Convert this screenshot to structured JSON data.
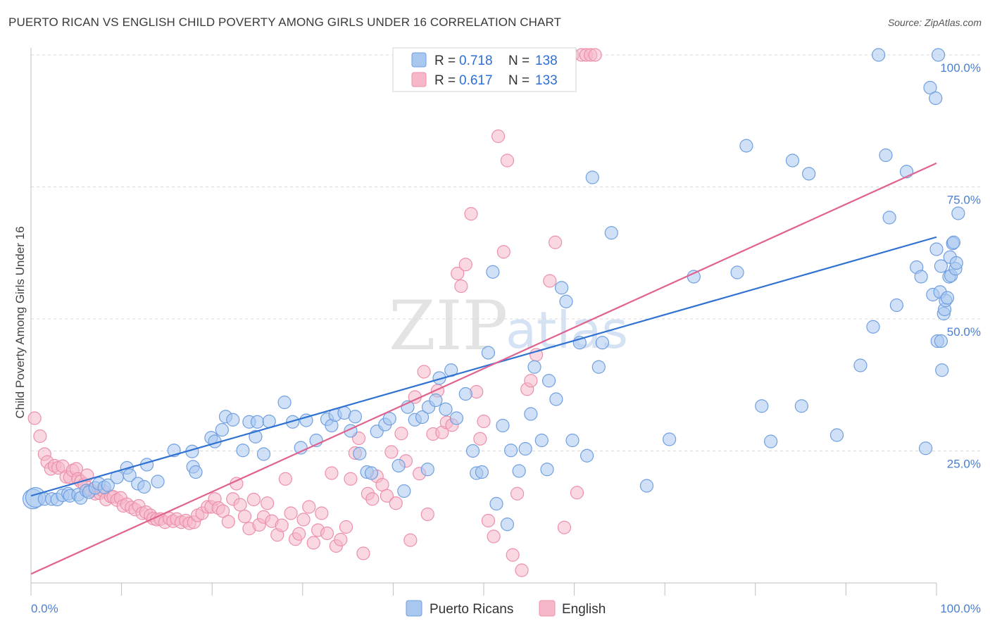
{
  "header": {
    "title": "PUERTO RICAN VS ENGLISH CHILD POVERTY AMONG GIRLS UNDER 16 CORRELATION CHART",
    "source": "Source: ZipAtlas.com"
  },
  "watermark": {
    "zip": "ZIP",
    "atlas": "atlas"
  },
  "colors": {
    "blue_fill": "#a9c8f0",
    "blue_stroke": "#6f9fe0",
    "blue_line": "#2f72d2",
    "pink_fill": "#f6b8c9",
    "pink_stroke": "#ec8fab",
    "pink_line": "#e0628e",
    "grid": "#d9d9d9",
    "tick_label": "#4a7fd0"
  },
  "legend": {
    "rows": [
      {
        "r_label": "R = ",
        "r_value": "0.718",
        "n_label": "N = ",
        "n_value": "138"
      },
      {
        "r_label": "R = ",
        "r_value": "0.617",
        "n_label": "N = ",
        "n_value": "133"
      }
    ]
  },
  "chart_data": {
    "type": "scatter",
    "title": "PUERTO RICAN VS ENGLISH CHILD POVERTY AMONG GIRLS UNDER 16 CORRELATION CHART",
    "xlabel": "",
    "ylabel": "Child Poverty Among Girls Under 16",
    "xlim": [
      0,
      100
    ],
    "ylim": [
      0,
      100
    ],
    "x_tick_labels": [
      "0.0%",
      "100.0%"
    ],
    "y_ticks": [
      25,
      50,
      75,
      100
    ],
    "y_tick_labels": [
      "25.0%",
      "50.0%",
      "75.0%",
      "100.0%"
    ],
    "grid": "horizontal dashed",
    "legend_position": "top-center",
    "series": [
      {
        "name": "Puerto Ricans",
        "r": 0.718,
        "n": 138,
        "trend": {
          "x": [
            0,
            100
          ],
          "y": [
            16.5,
            65.5
          ]
        },
        "points": [
          [
            0.2,
            15.9
          ],
          [
            0.5,
            16.2
          ],
          [
            1.5,
            15.9
          ],
          [
            2.3,
            15.9
          ],
          [
            2.9,
            15.8
          ],
          [
            3.5,
            16.6
          ],
          [
            4.1,
            16.9
          ],
          [
            4.3,
            16.5
          ],
          [
            5.2,
            16.7
          ],
          [
            5.5,
            16.1
          ],
          [
            6.1,
            17.5
          ],
          [
            6.4,
            17.2
          ],
          [
            7.1,
            18.0
          ],
          [
            7.5,
            18.8
          ],
          [
            8.1,
            18.1
          ],
          [
            8.5,
            18.5
          ],
          [
            9.5,
            20.0
          ],
          [
            10.6,
            21.8
          ],
          [
            10.9,
            20.4
          ],
          [
            11.8,
            18.8
          ],
          [
            12.5,
            18.2
          ],
          [
            12.8,
            22.4
          ],
          [
            14.0,
            19.2
          ],
          [
            15.8,
            25.1
          ],
          [
            17.8,
            24.9
          ],
          [
            17.9,
            22.0
          ],
          [
            18.2,
            21.0
          ],
          [
            19.9,
            27.5
          ],
          [
            20.3,
            26.8
          ],
          [
            21.1,
            29.0
          ],
          [
            21.5,
            31.5
          ],
          [
            22.3,
            30.9
          ],
          [
            23.4,
            25.1
          ],
          [
            24.1,
            30.5
          ],
          [
            24.8,
            27.7
          ],
          [
            25.0,
            30.5
          ],
          [
            25.7,
            24.4
          ],
          [
            26.3,
            30.6
          ],
          [
            28.0,
            34.2
          ],
          [
            28.9,
            30.5
          ],
          [
            29.8,
            25.6
          ],
          [
            30.4,
            30.8
          ],
          [
            31.5,
            27.0
          ],
          [
            32.7,
            31.0
          ],
          [
            33.2,
            29.8
          ],
          [
            33.6,
            31.8
          ],
          [
            34.6,
            32.2
          ],
          [
            35.3,
            28.8
          ],
          [
            35.8,
            31.5
          ],
          [
            36.3,
            24.5
          ],
          [
            37.1,
            21.0
          ],
          [
            37.6,
            20.8
          ],
          [
            38.2,
            28.7
          ],
          [
            39.1,
            30.0
          ],
          [
            39.6,
            31.1
          ],
          [
            40.6,
            22.2
          ],
          [
            41.2,
            17.4
          ],
          [
            41.6,
            33.3
          ],
          [
            42.4,
            30.9
          ],
          [
            43.2,
            31.4
          ],
          [
            43.8,
            21.5
          ],
          [
            43.9,
            33.3
          ],
          [
            44.7,
            34.6
          ],
          [
            45.1,
            38.8
          ],
          [
            45.8,
            32.9
          ],
          [
            46.4,
            40.3
          ],
          [
            47.0,
            31.2
          ],
          [
            48.0,
            35.8
          ],
          [
            48.8,
            25.0
          ],
          [
            49.2,
            20.8
          ],
          [
            49.8,
            21.0
          ],
          [
            50.5,
            43.6
          ],
          [
            51.0,
            58.9
          ],
          [
            51.4,
            15.0
          ],
          [
            52.1,
            29.8
          ],
          [
            52.6,
            11.1
          ],
          [
            53.0,
            25.1
          ],
          [
            53.9,
            21.2
          ],
          [
            54.6,
            25.4
          ],
          [
            55.2,
            32.0
          ],
          [
            55.6,
            40.9
          ],
          [
            56.4,
            27.0
          ],
          [
            57.0,
            21.5
          ],
          [
            57.2,
            38.3
          ],
          [
            58.0,
            34.8
          ],
          [
            58.6,
            55.9
          ],
          [
            59.1,
            53.3
          ],
          [
            59.8,
            27.0
          ],
          [
            60.6,
            45.5
          ],
          [
            61.4,
            24.1
          ],
          [
            62.0,
            76.8
          ],
          [
            62.7,
            40.9
          ],
          [
            63.1,
            45.5
          ],
          [
            64.1,
            66.3
          ],
          [
            68.0,
            18.4
          ],
          [
            70.5,
            27.2
          ],
          [
            73.2,
            58.0
          ],
          [
            78.0,
            58.8
          ],
          [
            79.0,
            82.8
          ],
          [
            80.7,
            33.5
          ],
          [
            81.7,
            26.8
          ],
          [
            84.1,
            80.0
          ],
          [
            85.1,
            33.5
          ],
          [
            85.9,
            77.5
          ],
          [
            89.0,
            28.0
          ],
          [
            91.6,
            41.2
          ],
          [
            93.0,
            48.5
          ],
          [
            93.6,
            100.0
          ],
          [
            94.4,
            81.0
          ],
          [
            94.8,
            69.2
          ],
          [
            95.6,
            52.6
          ],
          [
            96.7,
            77.9
          ],
          [
            97.8,
            59.8
          ],
          [
            98.3,
            58.0
          ],
          [
            98.8,
            25.5
          ],
          [
            99.3,
            93.8
          ],
          [
            99.6,
            54.6
          ],
          [
            99.9,
            91.8
          ],
          [
            100.0,
            63.2
          ],
          [
            100.1,
            45.8
          ],
          [
            100.2,
            100.0
          ],
          [
            100.4,
            55.1
          ],
          [
            100.5,
            45.8
          ],
          [
            100.5,
            60.0
          ],
          [
            100.6,
            40.3
          ],
          [
            100.8,
            51.0
          ],
          [
            100.9,
            51.8
          ],
          [
            101.0,
            53.5
          ],
          [
            101.2,
            54.0
          ],
          [
            101.4,
            58.0
          ],
          [
            101.5,
            61.7
          ],
          [
            101.6,
            58.2
          ],
          [
            101.8,
            64.3
          ],
          [
            101.9,
            64.5
          ],
          [
            102.1,
            59.5
          ],
          [
            102.2,
            60.6
          ],
          [
            102.4,
            70.0
          ]
        ]
      },
      {
        "name": "English",
        "r": 0.617,
        "n": 133,
        "trend": {
          "x": [
            0,
            100
          ],
          "y": [
            1.7,
            79.5
          ]
        },
        "points": [
          [
            0.4,
            31.2
          ],
          [
            1.0,
            27.8
          ],
          [
            1.5,
            24.4
          ],
          [
            1.8,
            22.9
          ],
          [
            2.2,
            21.6
          ],
          [
            2.6,
            22.2
          ],
          [
            3.0,
            21.8
          ],
          [
            3.5,
            22.1
          ],
          [
            3.9,
            20.1
          ],
          [
            4.3,
            20.0
          ],
          [
            4.6,
            21.3
          ],
          [
            5.0,
            21.6
          ],
          [
            5.2,
            19.7
          ],
          [
            5.5,
            19.2
          ],
          [
            5.9,
            18.7
          ],
          [
            6.2,
            20.4
          ],
          [
            6.6,
            17.6
          ],
          [
            7.1,
            16.9
          ],
          [
            7.6,
            17.0
          ],
          [
            8.0,
            17.4
          ],
          [
            8.3,
            15.8
          ],
          [
            8.8,
            16.4
          ],
          [
            9.1,
            16.3
          ],
          [
            9.5,
            15.7
          ],
          [
            9.9,
            16.1
          ],
          [
            10.2,
            14.6
          ],
          [
            10.6,
            14.9
          ],
          [
            11.1,
            14.3
          ],
          [
            11.5,
            13.9
          ],
          [
            11.9,
            14.6
          ],
          [
            12.3,
            13.2
          ],
          [
            12.7,
            13.4
          ],
          [
            13.2,
            12.8
          ],
          [
            13.5,
            12.2
          ],
          [
            13.9,
            12.0
          ],
          [
            14.3,
            12.1
          ],
          [
            14.8,
            11.5
          ],
          [
            15.3,
            12.2
          ],
          [
            15.7,
            11.7
          ],
          [
            16.1,
            12.1
          ],
          [
            16.6,
            11.5
          ],
          [
            17.1,
            11.8
          ],
          [
            17.5,
            11.3
          ],
          [
            18.0,
            11.5
          ],
          [
            18.4,
            12.8
          ],
          [
            18.9,
            13.2
          ],
          [
            19.5,
            14.4
          ],
          [
            19.9,
            14.4
          ],
          [
            20.3,
            15.9
          ],
          [
            20.7,
            14.2
          ],
          [
            21.2,
            13.6
          ],
          [
            21.8,
            11.6
          ],
          [
            22.3,
            15.9
          ],
          [
            22.7,
            18.8
          ],
          [
            23.1,
            14.8
          ],
          [
            23.6,
            12.6
          ],
          [
            24.1,
            10.3
          ],
          [
            24.6,
            15.8
          ],
          [
            25.2,
            11.0
          ],
          [
            25.7,
            12.5
          ],
          [
            26.1,
            15.1
          ],
          [
            26.6,
            11.7
          ],
          [
            27.2,
            9.1
          ],
          [
            27.7,
            10.9
          ],
          [
            28.1,
            19.7
          ],
          [
            28.7,
            13.2
          ],
          [
            29.2,
            8.3
          ],
          [
            29.6,
            9.3
          ],
          [
            30.1,
            12.0
          ],
          [
            30.7,
            14.4
          ],
          [
            31.2,
            7.6
          ],
          [
            31.7,
            10.0
          ],
          [
            32.1,
            13.2
          ],
          [
            32.7,
            9.4
          ],
          [
            33.2,
            20.8
          ],
          [
            33.7,
            7.0
          ],
          [
            34.2,
            8.2
          ],
          [
            34.8,
            10.6
          ],
          [
            35.3,
            19.7
          ],
          [
            35.8,
            24.6
          ],
          [
            36.2,
            27.4
          ],
          [
            36.7,
            5.6
          ],
          [
            37.2,
            16.9
          ],
          [
            37.7,
            15.9
          ],
          [
            38.2,
            20.2
          ],
          [
            38.8,
            18.6
          ],
          [
            39.3,
            16.5
          ],
          [
            39.8,
            24.8
          ],
          [
            40.3,
            15.1
          ],
          [
            40.9,
            28.3
          ],
          [
            41.4,
            23.1
          ],
          [
            41.9,
            8.1
          ],
          [
            42.4,
            35.2
          ],
          [
            42.9,
            20.7
          ],
          [
            43.4,
            40.0
          ],
          [
            43.8,
            13.0
          ],
          [
            44.4,
            28.2
          ],
          [
            44.9,
            36.4
          ],
          [
            45.4,
            28.5
          ],
          [
            45.9,
            30.4
          ],
          [
            46.5,
            29.9
          ],
          [
            47.1,
            58.6
          ],
          [
            47.5,
            56.2
          ],
          [
            48.0,
            60.3
          ],
          [
            48.6,
            69.9
          ],
          [
            49.2,
            36.2
          ],
          [
            49.6,
            27.3
          ],
          [
            50.0,
            30.6
          ],
          [
            50.5,
            11.8
          ],
          [
            51.1,
            8.8
          ],
          [
            51.6,
            84.6
          ],
          [
            52.2,
            62.7
          ],
          [
            52.6,
            80.0
          ],
          [
            53.2,
            5.3
          ],
          [
            53.7,
            16.9
          ],
          [
            54.2,
            2.4
          ],
          [
            54.8,
            36.7
          ],
          [
            55.2,
            38.3
          ],
          [
            55.8,
            43.2
          ],
          [
            56.3,
            97.1
          ],
          [
            56.8,
            97.6
          ],
          [
            57.3,
            57.2
          ],
          [
            57.9,
            64.5
          ],
          [
            58.4,
            100.0
          ],
          [
            58.9,
            10.5
          ],
          [
            59.3,
            100.0
          ],
          [
            59.8,
            100.0
          ],
          [
            60.3,
            17.1
          ],
          [
            60.8,
            100.0
          ],
          [
            61.3,
            100.0
          ],
          [
            61.8,
            100.0
          ],
          [
            62.3,
            100.0
          ]
        ]
      }
    ]
  },
  "bottom_legend": {
    "items": [
      {
        "label": "Puerto Ricans"
      },
      {
        "label": "English"
      }
    ]
  }
}
